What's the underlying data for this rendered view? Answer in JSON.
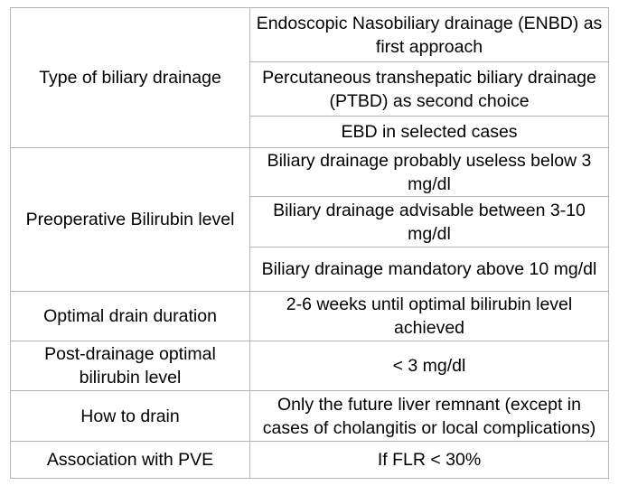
{
  "colors": {
    "background": "#ffffff",
    "text": "#000000",
    "table_border": "#b4b4b4"
  },
  "table": {
    "rows": [
      {
        "label": "Type of biliary drainage",
        "values": [
          "Endoscopic Nasobiliary drainage (ENBD) as first approach",
          "Percutaneous transhepatic biliary drainage (PTBD) as second choice",
          "EBD in selected cases"
        ]
      },
      {
        "label": "Preoperative Bilirubin level",
        "values": [
          "Biliary drainage probably useless below 3 mg/dl",
          "Biliary drainage advisable between 3-10 mg/dl",
          "Biliary drainage mandatory above 10 mg/dl"
        ]
      },
      {
        "label": "Optimal drain duration",
        "values": [
          "2-6 weeks until optimal bilirubin level achieved"
        ]
      },
      {
        "label": "Post-drainage optimal bilirubin level",
        "values": [
          "< 3 mg/dl"
        ]
      },
      {
        "label": "How to drain",
        "values": [
          "Only the future liver remnant (except in cases of cholangitis or local complications)"
        ]
      },
      {
        "label": "Association with PVE",
        "values": [
          "If FLR < 30%"
        ]
      }
    ]
  }
}
